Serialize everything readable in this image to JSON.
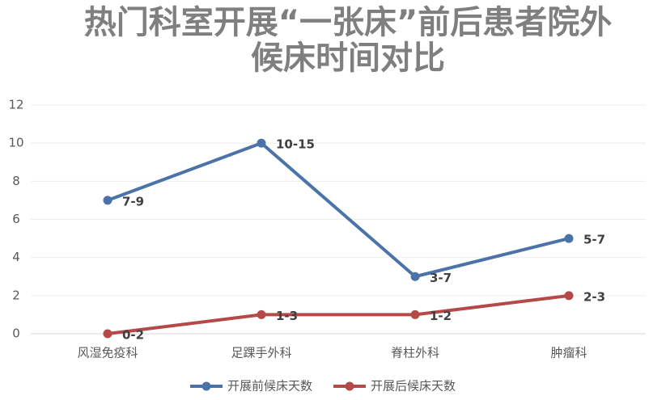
{
  "chart_data": {
    "type": "line",
    "title": "热门科室开展“一张床”前后患者院外候床时间对比",
    "categories": [
      "风湿免疫科",
      "足踝手外科",
      "脊柱外科",
      "肿瘤科"
    ],
    "series": [
      {
        "name": "开展前候床天数",
        "color": "#4a74a8",
        "values": [
          7,
          10,
          3,
          5
        ],
        "value_labels": [
          "7-9",
          "10-15",
          "3-7",
          "5-7"
        ]
      },
      {
        "name": "开展后候床天数",
        "color": "#b34a48",
        "values": [
          0,
          1,
          1,
          2
        ],
        "value_labels": [
          "0-2",
          "1-3",
          "1-2",
          "2-3"
        ]
      }
    ],
    "ylim": [
      0,
      12
    ],
    "yticks": [
      0,
      2,
      4,
      6,
      8,
      10,
      12
    ],
    "grid": true
  }
}
